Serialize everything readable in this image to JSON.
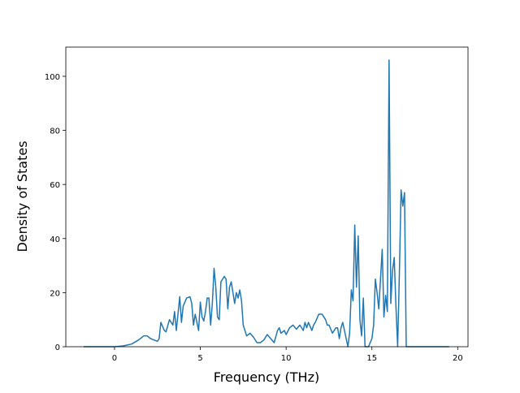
{
  "chart_data": {
    "type": "line",
    "xlabel": "Frequency (THz)",
    "ylabel": "Density of States",
    "color": "#1f77b4",
    "grid": false,
    "xlim": [
      -2.84,
      20.6
    ],
    "ylim": [
      0,
      110.8
    ],
    "xticks": [
      0,
      5,
      10,
      15,
      20
    ],
    "yticks": [
      0,
      20,
      40,
      60,
      80,
      100
    ],
    "x": [
      -1.8,
      -0.5,
      0,
      0.5,
      1.0,
      1.4,
      1.7,
      1.9,
      2.1,
      2.3,
      2.5,
      2.6,
      2.7,
      2.9,
      3.0,
      3.2,
      3.4,
      3.5,
      3.6,
      3.8,
      3.9,
      4.0,
      4.2,
      4.4,
      4.5,
      4.6,
      4.7,
      4.8,
      4.9,
      5.0,
      5.1,
      5.2,
      5.3,
      5.4,
      5.5,
      5.6,
      5.7,
      5.8,
      5.9,
      6.0,
      6.1,
      6.2,
      6.4,
      6.5,
      6.6,
      6.7,
      6.8,
      6.9,
      7.0,
      7.1,
      7.2,
      7.3,
      7.4,
      7.5,
      7.7,
      7.9,
      8.1,
      8.3,
      8.5,
      8.7,
      8.9,
      9.1,
      9.3,
      9.5,
      9.6,
      9.7,
      9.9,
      10.0,
      10.2,
      10.4,
      10.6,
      10.8,
      11.0,
      11.1,
      11.2,
      11.3,
      11.5,
      11.6,
      11.7,
      11.9,
      12.1,
      12.3,
      12.4,
      12.5,
      12.7,
      12.9,
      13.0,
      13.1,
      13.2,
      13.3,
      13.4,
      13.5,
      13.6,
      13.7,
      13.8,
      13.9,
      14.0,
      14.1,
      14.2,
      14.3,
      14.4,
      14.5,
      14.6,
      14.8,
      15.0,
      15.1,
      15.2,
      15.3,
      15.4,
      15.5,
      15.6,
      15.7,
      15.8,
      15.9,
      16.0,
      16.1,
      16.2,
      16.3,
      16.4,
      16.5,
      16.6,
      16.7,
      16.8,
      16.9,
      17.0,
      17.5,
      19.5
    ],
    "values": [
      0,
      0,
      0,
      0.3,
      1,
      2.5,
      4,
      4,
      3,
      2.5,
      2,
      3,
      9,
      6,
      5.5,
      10,
      8,
      13,
      6,
      18.5,
      9,
      15,
      18,
      18.5,
      16,
      8,
      12,
      9,
      6,
      16.5,
      11,
      9.5,
      13,
      18,
      18,
      8,
      16,
      29,
      22,
      11,
      10,
      24,
      26,
      25,
      14,
      22,
      24,
      20,
      16,
      20,
      18,
      21,
      17,
      8,
      4,
      5,
      3.5,
      1.5,
      1.5,
      2.5,
      4.5,
      3,
      1.5,
      6,
      7,
      5,
      6,
      4.5,
      7,
      8,
      6.5,
      8,
      6,
      9,
      7,
      9,
      6,
      8,
      9,
      12,
      12,
      10,
      8,
      8,
      5,
      7,
      7,
      3,
      7,
      9,
      6,
      3,
      0,
      5,
      21,
      17,
      45,
      22,
      41,
      10,
      4,
      18,
      0,
      0,
      3,
      8,
      25,
      20,
      14,
      25,
      36,
      11,
      19,
      13,
      106,
      16,
      28,
      33,
      15,
      0,
      27,
      58,
      52,
      57,
      0,
      0,
      0
    ]
  }
}
